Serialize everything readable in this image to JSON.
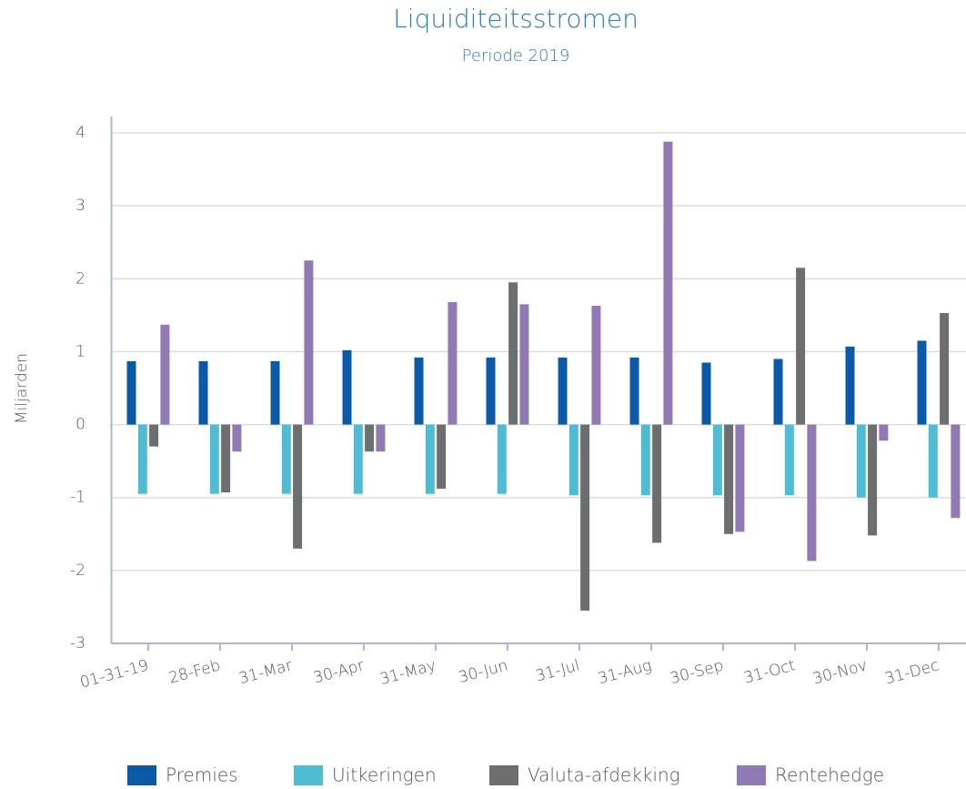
{
  "chart_data": {
    "type": "bar",
    "title": "Liquiditeitsstromen",
    "subtitle": "Periode 2019",
    "y_label": "Miljarden",
    "categories": [
      "01-31-19",
      "28-Feb",
      "31-Mar",
      "30-Apr",
      "31-May",
      "30-Jun",
      "31-Jul",
      "31-Aug",
      "30-Sep",
      "31-Oct",
      "30-Nov",
      "31-Dec"
    ],
    "series": [
      {
        "name": "Premies",
        "color": "#0a5aa8",
        "values": [
          0.87,
          0.87,
          0.87,
          1.02,
          0.92,
          0.92,
          0.92,
          0.92,
          0.85,
          0.9,
          1.07,
          1.15
        ]
      },
      {
        "name": "Uitkeringen",
        "color": "#4fbcd3",
        "values": [
          -0.95,
          -0.95,
          -0.95,
          -0.95,
          -0.95,
          -0.95,
          -0.97,
          -0.97,
          -0.97,
          -0.97,
          -1.0,
          -1.0
        ]
      },
      {
        "name": "Valuta-afdekking",
        "color": "#6d6e70",
        "values": [
          -0.3,
          -0.93,
          -1.7,
          -0.37,
          -0.88,
          1.95,
          -2.55,
          -1.62,
          -1.5,
          2.15,
          -1.52,
          1.53
        ]
      },
      {
        "name": "Rentehedge",
        "color": "#9179b3",
        "values": [
          1.37,
          -0.37,
          2.25,
          -0.37,
          1.68,
          1.65,
          1.63,
          3.88,
          -1.47,
          -1.87,
          -0.22,
          -1.28
        ]
      }
    ],
    "ylim": [
      -3,
      4
    ],
    "yticks": [
      -3,
      -2,
      -1,
      0,
      1,
      2,
      3,
      4
    ],
    "grid": true,
    "legend": "bottom"
  }
}
